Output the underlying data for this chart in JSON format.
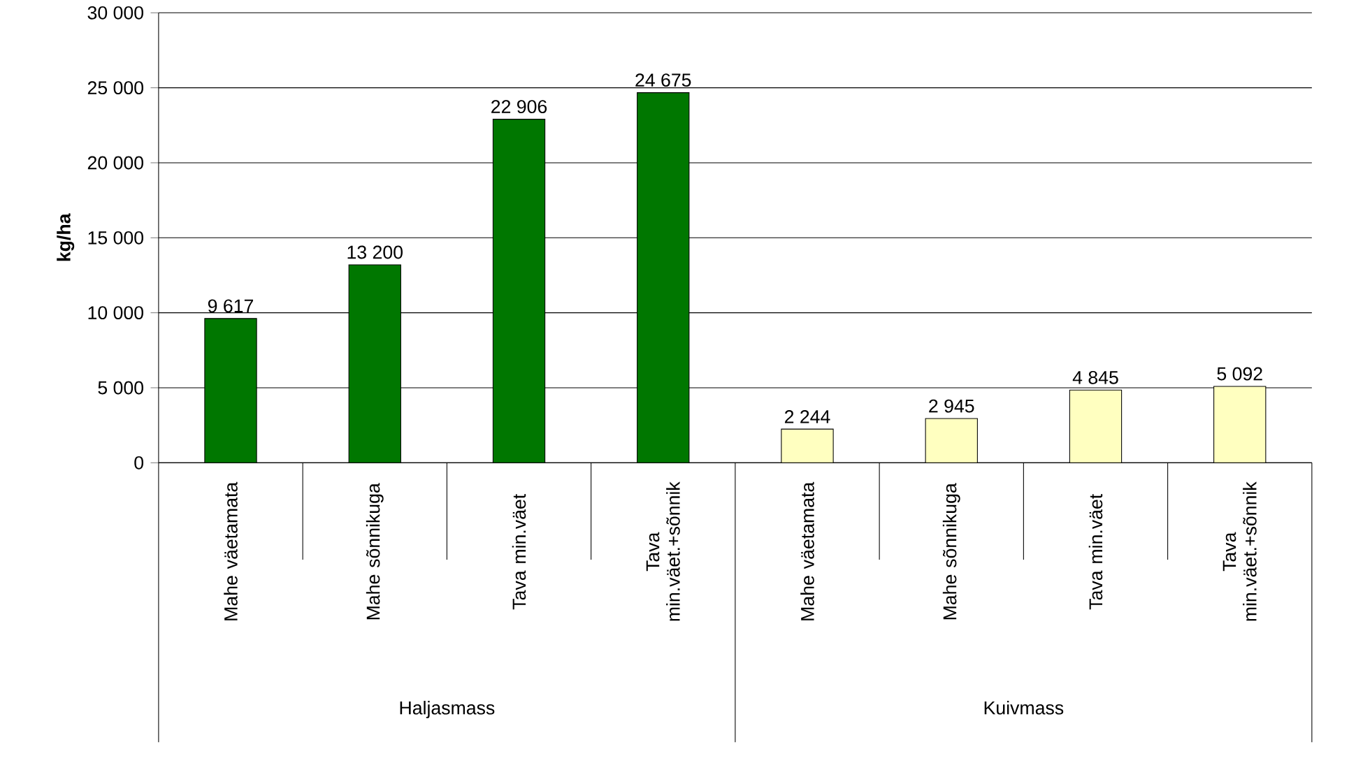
{
  "chart_data": {
    "type": "bar",
    "ylabel": "kg/ha",
    "categories": [
      "Mahe väetamata",
      "Mahe sõnnikuga",
      "Tava min.väet",
      "Tava min.väet.+sõnnik",
      "Mahe väetamata",
      "Mahe sõnnikuga",
      "Tava min.väet",
      "Tava min.väet.+sõnnik"
    ],
    "values": [
      9617,
      13200,
      22906,
      24675,
      2244,
      2945,
      4845,
      5092
    ],
    "value_labels": [
      "9 617",
      "13 200",
      "22 906",
      "24 675",
      "2 244",
      "2 945",
      "4 845",
      "5 092"
    ],
    "colors": [
      "#007700",
      "#007700",
      "#007700",
      "#007700",
      "#ffffc0",
      "#ffffc0",
      "#ffffc0",
      "#ffffc0"
    ],
    "ylim": [
      0,
      30000
    ],
    "yticks": [
      {
        "value": 0,
        "label": "0"
      },
      {
        "value": 5000,
        "label": "5 000"
      },
      {
        "value": 10000,
        "label": "10 000"
      },
      {
        "value": 15000,
        "label": "15 000"
      },
      {
        "value": 20000,
        "label": "20 000"
      },
      {
        "value": 25000,
        "label": "25 000"
      },
      {
        "value": 30000,
        "label": "30 000"
      }
    ],
    "grid": "y",
    "annotations": [
      "Haljasmass",
      "Kuivmass"
    ]
  }
}
